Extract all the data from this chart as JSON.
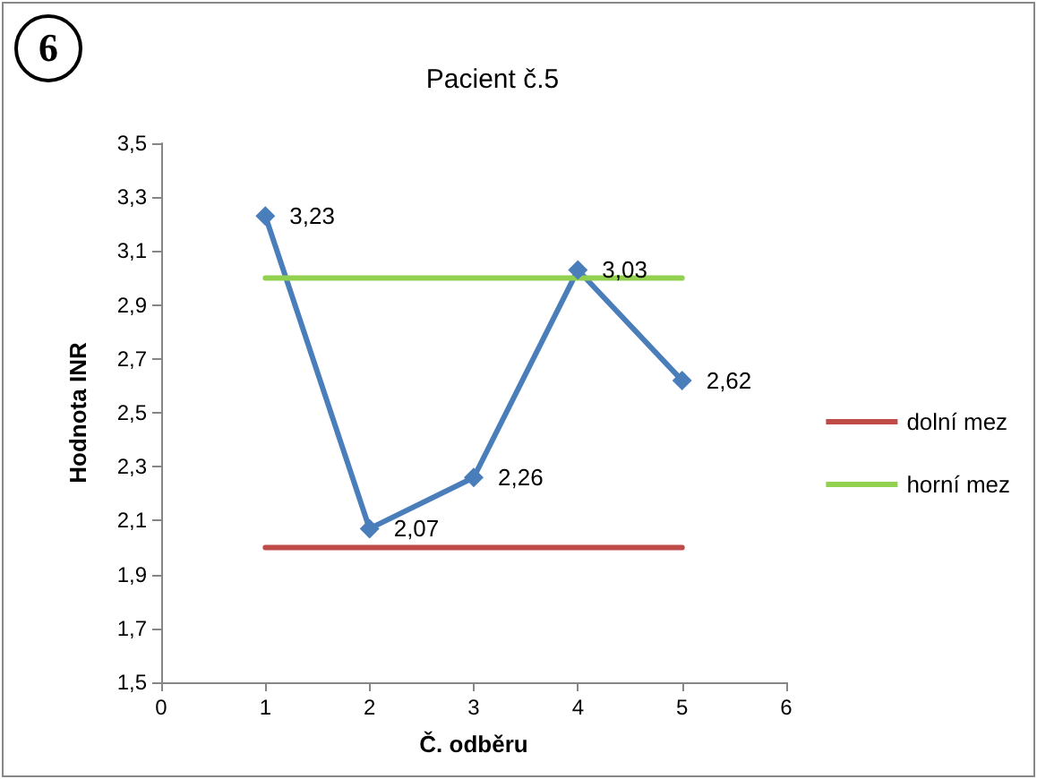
{
  "chart_data": {
    "type": "line",
    "title": "Pacient č.5",
    "xlabel": "Č. odběru",
    "ylabel": "Hodnota INR",
    "annotations": [
      "6"
    ],
    "xlim": [
      0,
      6
    ],
    "xticks": [
      0,
      1,
      2,
      3,
      4,
      5,
      6
    ],
    "ylim": [
      1.5,
      3.5
    ],
    "yticks": [
      {
        "value": 1.5,
        "label": "1,5"
      },
      {
        "value": 1.7,
        "label": "1,7"
      },
      {
        "value": 1.9,
        "label": "1,9"
      },
      {
        "value": 2.1,
        "label": "2,1"
      },
      {
        "value": 2.3,
        "label": "2,3"
      },
      {
        "value": 2.5,
        "label": "2,5"
      },
      {
        "value": 2.7,
        "label": "2,7"
      },
      {
        "value": 2.9,
        "label": "2,9"
      },
      {
        "value": 3.1,
        "label": "3,1"
      },
      {
        "value": 3.3,
        "label": "3,3"
      },
      {
        "value": 3.5,
        "label": "3,5"
      }
    ],
    "grid": false,
    "legend": "right",
    "series": [
      {
        "color": "#4a7ebb",
        "x": [
          1,
          2,
          3,
          4,
          5
        ],
        "values": [
          3.23,
          2.07,
          2.26,
          3.03,
          2.62
        ],
        "marker": "diamond",
        "value_labels": [
          "3,23",
          "2,07",
          "2,26",
          "3,03",
          "2,62"
        ]
      },
      {
        "name": "dolní mez",
        "color": "#be4b48",
        "x": [
          1,
          5
        ],
        "values": [
          2,
          2
        ],
        "marker": "none"
      },
      {
        "name": "horní mez",
        "color": "#92d050",
        "x": [
          1,
          5
        ],
        "values": [
          3,
          3
        ],
        "marker": "none"
      }
    ]
  }
}
